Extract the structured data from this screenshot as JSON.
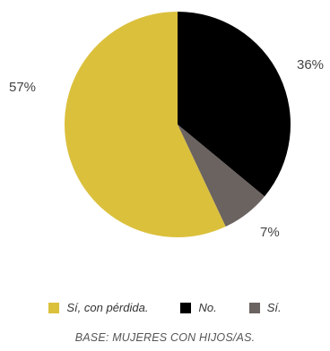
{
  "chart_data": {
    "type": "pie",
    "slices": [
      {
        "label": "No.",
        "value": 36,
        "display": "36%",
        "color": "#000000"
      },
      {
        "label": "Sí.",
        "value": 7,
        "display": "7%",
        "color": "#6b6360"
      },
      {
        "label": "Sí, con pérdida.",
        "value": 57,
        "display": "57%",
        "color": "#dbc03c"
      }
    ],
    "start_angle_deg": 0,
    "direction": "clockwise"
  },
  "legend": {
    "items": [
      {
        "label": "Sí, con pérdida.",
        "color": "#dbc03c"
      },
      {
        "label": "No.",
        "color": "#000000"
      },
      {
        "label": "Sí.",
        "color": "#6b6360"
      }
    ]
  },
  "base_note": "BASE: MUJERES CON HIJOS/AS."
}
